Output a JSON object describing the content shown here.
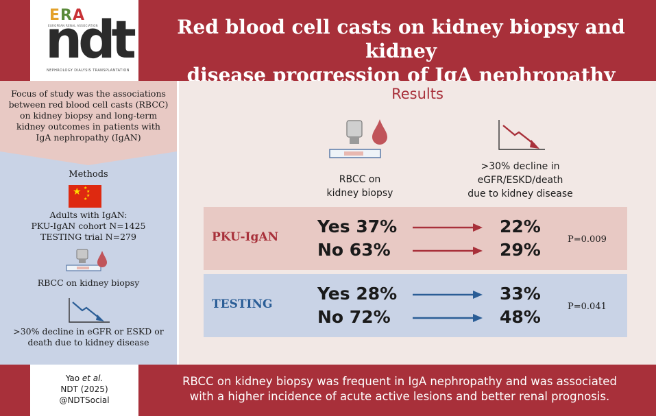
{
  "header": {
    "title_line1": "Red blood cell casts on kidney biopsy and kidney",
    "title_line2": "disease progression of IgA nephropathy",
    "logo": {
      "era": "ERA",
      "era_sub": "EUROPEAN RENAL ASSOCIATION",
      "ndt": "ndt",
      "ndt_sub": "NEPHROLOGY DIALYSIS TRANSPLANTATION"
    }
  },
  "left": {
    "focus_lines": [
      "Focus of study was the associations",
      "between red blood cell casts (RBCC)",
      "on kidney biopsy and long-term",
      "kidney outcomes in patients with",
      "IgA nephropathy (IgAN)"
    ],
    "methods_title": "Methods",
    "adults_lines": [
      "Adults with IgAN:",
      "PKU-IgAN cohort N=1425",
      "TESTING trial N=279"
    ],
    "rbcc_label": "RBCC on kidney biopsy",
    "decline_lines": [
      ">30% decline in eGFR or ESKD or",
      "death due to kidney disease"
    ]
  },
  "results": {
    "title": "Results",
    "rbcc_head_lines": [
      "RBCC on",
      "kidney biopsy"
    ],
    "decline_head_lines": [
      ">30% decline in",
      "eGFR/ESKD/death",
      "due to kidney disease"
    ],
    "rows": [
      {
        "name": "PKU-IgAN",
        "yes_label": "Yes 37%",
        "yes_value": "22%",
        "no_label": "No 63%",
        "no_value": "29%",
        "p_value": "P=0.009",
        "color": "#a8303a",
        "band_color": "#e8c9c4"
      },
      {
        "name": "TESTING",
        "yes_label": "Yes 28%",
        "yes_value": "33%",
        "no_label": "No 72%",
        "no_value": "48%",
        "p_value": "P=0.041",
        "color": "#2a5d96",
        "band_color": "#c9d3e6"
      }
    ]
  },
  "footer": {
    "author": "Yao",
    "author_suffix": "et al.",
    "journal": "NDT (2025)",
    "handle": "@NDTSocial",
    "summary_line1": "RBCC on kidney biopsy was frequent in IgA nephropathy and was associated",
    "summary_line2": "with a higher incidence of acute active lesions and better renal prognosis."
  },
  "colors": {
    "brand_red": "#a8303a",
    "accent_blue": "#2a5d96",
    "pink_panel": "#e8c9c4",
    "blue_panel": "#c9d3e6"
  },
  "icons": [
    "microscope-icon",
    "blood-drop-icon",
    "declining-chart-icon",
    "china-flag-icon"
  ]
}
